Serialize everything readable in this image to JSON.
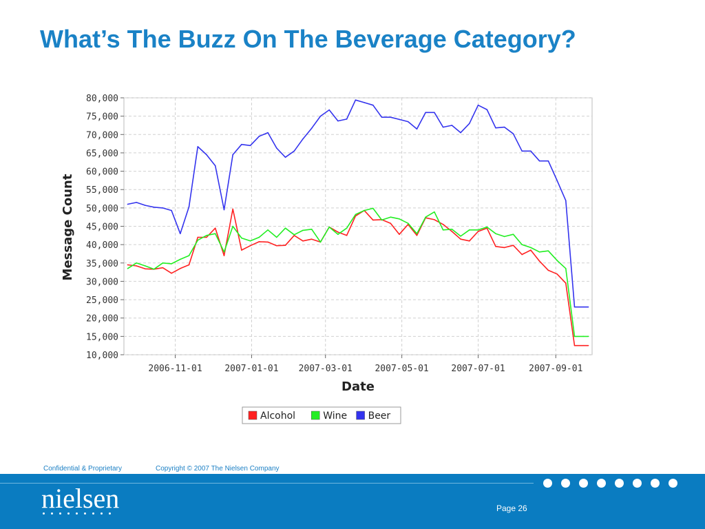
{
  "slide": {
    "title": "What’s The Buzz On The Beverage Category?"
  },
  "footer": {
    "confidential": "Confidential & Proprietary",
    "copyright": "Copyright © 2007 The Nielsen Company",
    "page": "Page 26",
    "logo_text": "nielsen",
    "band_color": "#0a7cc1"
  },
  "chart_data": {
    "type": "line",
    "title": "",
    "xlabel": "Date",
    "ylabel": "Message Count",
    "ylim": [
      10000,
      80000
    ],
    "y_ticks": [
      "10,000",
      "15,000",
      "20,000",
      "25,000",
      "30,000",
      "35,000",
      "40,000",
      "45,000",
      "50,000",
      "55,000",
      "60,000",
      "65,000",
      "70,000",
      "75,000",
      "80,000"
    ],
    "x_ticks": [
      "2006-11-01",
      "2007-01-01",
      "2007-03-01",
      "2007-05-01",
      "2007-07-01",
      "2007-09-01"
    ],
    "x_range": [
      "2006-09-24",
      "2007-09-27"
    ],
    "grid": true,
    "legend_position": "bottom",
    "series": [
      {
        "name": "Alcohol",
        "color": "#ff2020",
        "x": [
          "2006-09-24",
          "2006-10-01",
          "2006-10-08",
          "2006-10-15",
          "2006-10-22",
          "2006-10-29",
          "2006-11-05",
          "2006-11-12",
          "2006-11-19",
          "2006-11-26",
          "2006-12-03",
          "2006-12-10",
          "2006-12-17",
          "2006-12-24",
          "2006-12-31",
          "2007-01-07",
          "2007-01-14",
          "2007-01-21",
          "2007-01-28",
          "2007-02-04",
          "2007-02-11",
          "2007-02-18",
          "2007-02-25",
          "2007-03-04",
          "2007-03-11",
          "2007-03-18",
          "2007-03-25",
          "2007-04-01",
          "2007-04-08",
          "2007-04-15",
          "2007-04-22",
          "2007-04-29",
          "2007-05-06",
          "2007-05-13",
          "2007-05-20",
          "2007-05-27",
          "2007-06-03",
          "2007-06-10",
          "2007-06-17",
          "2007-06-24",
          "2007-07-01",
          "2007-07-08",
          "2007-07-15",
          "2007-07-22",
          "2007-07-29",
          "2007-08-05",
          "2007-08-12",
          "2007-08-19",
          "2007-08-26",
          "2007-09-02",
          "2007-09-09",
          "2007-09-16",
          "2007-09-23",
          "2007-09-27"
        ],
        "values": [
          34500,
          34200,
          33400,
          33300,
          33700,
          32200,
          33500,
          34500,
          42000,
          42000,
          44500,
          37000,
          49700,
          38500,
          39700,
          40800,
          40700,
          39700,
          39800,
          42500,
          41000,
          41500,
          40700,
          44800,
          43400,
          42500,
          47800,
          49300,
          46700,
          46800,
          45800,
          42800,
          45500,
          42500,
          47300,
          46800,
          45500,
          43600,
          41500,
          41000,
          43600,
          44500,
          39500,
          39200,
          39800,
          37300,
          38500,
          35500,
          33000,
          32000,
          29500,
          12500,
          12500,
          12500
        ]
      },
      {
        "name": "Wine",
        "color": "#22ee22",
        "x": [
          "2006-09-24",
          "2006-10-01",
          "2006-10-08",
          "2006-10-15",
          "2006-10-22",
          "2006-10-29",
          "2006-11-05",
          "2006-11-12",
          "2006-11-19",
          "2006-11-26",
          "2006-12-03",
          "2006-12-10",
          "2006-12-17",
          "2006-12-24",
          "2006-12-31",
          "2007-01-07",
          "2007-01-14",
          "2007-01-21",
          "2007-01-28",
          "2007-02-04",
          "2007-02-11",
          "2007-02-18",
          "2007-02-25",
          "2007-03-04",
          "2007-03-11",
          "2007-03-18",
          "2007-03-25",
          "2007-04-01",
          "2007-04-08",
          "2007-04-15",
          "2007-04-22",
          "2007-04-29",
          "2007-05-06",
          "2007-05-13",
          "2007-05-20",
          "2007-05-27",
          "2007-06-03",
          "2007-06-10",
          "2007-06-17",
          "2007-06-24",
          "2007-07-01",
          "2007-07-08",
          "2007-07-15",
          "2007-07-22",
          "2007-07-29",
          "2007-08-05",
          "2007-08-12",
          "2007-08-19",
          "2007-08-26",
          "2007-09-02",
          "2007-09-09",
          "2007-09-16",
          "2007-09-23",
          "2007-09-27"
        ],
        "values": [
          33500,
          35000,
          34200,
          33300,
          35000,
          34800,
          36000,
          37000,
          41200,
          42500,
          43000,
          38000,
          45000,
          41800,
          41000,
          42000,
          44000,
          42000,
          44500,
          42700,
          43900,
          44200,
          40700,
          44800,
          42800,
          44500,
          48200,
          49300,
          49900,
          46700,
          47500,
          47000,
          45800,
          43000,
          47500,
          48900,
          44000,
          44200,
          42300,
          44000,
          44000,
          44800,
          43000,
          42200,
          42800,
          40000,
          39200,
          38000,
          38300,
          35700,
          33500,
          15000,
          15000,
          15000
        ]
      },
      {
        "name": "Beer",
        "color": "#3333ee",
        "x": [
          "2006-09-24",
          "2006-10-01",
          "2006-10-08",
          "2006-10-15",
          "2006-10-22",
          "2006-10-29",
          "2006-11-05",
          "2006-11-12",
          "2006-11-19",
          "2006-11-26",
          "2006-12-03",
          "2006-12-10",
          "2006-12-17",
          "2006-12-24",
          "2006-12-31",
          "2007-01-07",
          "2007-01-14",
          "2007-01-21",
          "2007-01-28",
          "2007-02-04",
          "2007-02-11",
          "2007-02-18",
          "2007-02-25",
          "2007-03-04",
          "2007-03-11",
          "2007-03-18",
          "2007-03-25",
          "2007-04-01",
          "2007-04-08",
          "2007-04-15",
          "2007-04-22",
          "2007-04-29",
          "2007-05-06",
          "2007-05-13",
          "2007-05-20",
          "2007-05-27",
          "2007-06-03",
          "2007-06-10",
          "2007-06-17",
          "2007-06-24",
          "2007-07-01",
          "2007-07-08",
          "2007-07-15",
          "2007-07-22",
          "2007-07-29",
          "2007-08-05",
          "2007-08-12",
          "2007-08-19",
          "2007-08-26",
          "2007-09-02",
          "2007-09-09",
          "2007-09-16",
          "2007-09-23",
          "2007-09-27"
        ],
        "values": [
          51000,
          51500,
          50700,
          50200,
          50000,
          49300,
          43000,
          50300,
          66700,
          64500,
          61500,
          49500,
          64500,
          67300,
          67000,
          69500,
          70500,
          66300,
          63800,
          65500,
          68800,
          71700,
          75000,
          76700,
          73700,
          74200,
          79400,
          78700,
          78000,
          74700,
          74700,
          74100,
          73500,
          71500,
          76000,
          76000,
          72000,
          72500,
          70500,
          73000,
          78000,
          76800,
          71800,
          72000,
          70200,
          65500,
          65500,
          62800,
          62800,
          57500,
          52000,
          23000,
          23000,
          23000
        ]
      }
    ]
  }
}
